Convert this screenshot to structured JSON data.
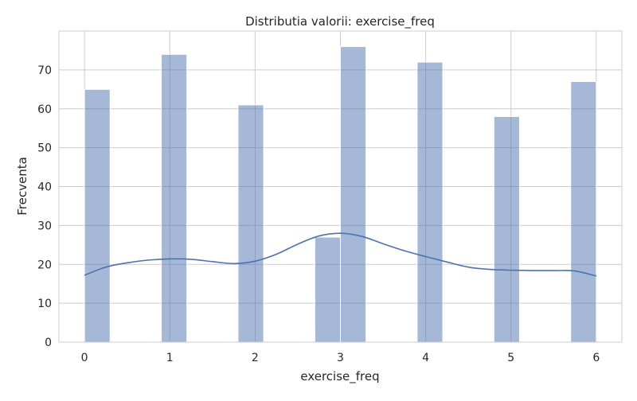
{
  "chart_data": {
    "type": "histogram",
    "title": "Distributia valorii: exercise_freq",
    "xlabel": "exercise_freq",
    "ylabel": "Frecventa",
    "xlim": [
      -0.3,
      6.3
    ],
    "ylim": [
      0,
      80
    ],
    "xticks": [
      "0",
      "1",
      "2",
      "3",
      "4",
      "5",
      "6"
    ],
    "yticks": [
      "0",
      "10",
      "20",
      "30",
      "40",
      "50",
      "60",
      "70"
    ],
    "grid": true,
    "bar_color": "#4c72b0",
    "kde_color": "#4c72b0",
    "bins": [
      {
        "x0": 0.0,
        "x1": 0.3,
        "count": 65
      },
      {
        "x0": 0.3,
        "x1": 0.6,
        "count": 0
      },
      {
        "x0": 0.6,
        "x1": 0.9,
        "count": 0
      },
      {
        "x0": 0.9,
        "x1": 1.2,
        "count": 74
      },
      {
        "x0": 1.2,
        "x1": 1.5,
        "count": 0
      },
      {
        "x0": 1.5,
        "x1": 1.8,
        "count": 0
      },
      {
        "x0": 1.8,
        "x1": 2.1,
        "count": 61
      },
      {
        "x0": 2.1,
        "x1": 2.4,
        "count": 0
      },
      {
        "x0": 2.4,
        "x1": 2.7,
        "count": 0
      },
      {
        "x0": 2.7,
        "x1": 3.0,
        "count": 27
      },
      {
        "x0": 3.0,
        "x1": 3.3,
        "count": 76
      },
      {
        "x0": 3.3,
        "x1": 3.6,
        "count": 0
      },
      {
        "x0": 3.6,
        "x1": 3.9,
        "count": 0
      },
      {
        "x0": 3.9,
        "x1": 4.2,
        "count": 72
      },
      {
        "x0": 4.2,
        "x1": 4.5,
        "count": 0
      },
      {
        "x0": 4.5,
        "x1": 4.8,
        "count": 0
      },
      {
        "x0": 4.8,
        "x1": 5.1,
        "count": 58
      },
      {
        "x0": 5.1,
        "x1": 5.4,
        "count": 0
      },
      {
        "x0": 5.4,
        "x1": 5.7,
        "count": 0
      },
      {
        "x0": 5.7,
        "x1": 6.0,
        "count": 67
      }
    ],
    "kde": {
      "x": [
        0.0,
        0.25,
        0.5,
        0.75,
        1.0,
        1.25,
        1.5,
        1.75,
        2.0,
        2.25,
        2.5,
        2.75,
        3.0,
        3.25,
        3.5,
        3.75,
        4.0,
        4.25,
        4.5,
        4.75,
        5.0,
        5.25,
        5.5,
        5.75,
        6.0
      ],
      "y": [
        17.2,
        19.3,
        20.4,
        21.1,
        21.4,
        21.3,
        20.7,
        20.2,
        20.8,
        22.6,
        25.2,
        27.3,
        28.0,
        27.2,
        25.3,
        23.5,
        22.0,
        20.6,
        19.3,
        18.7,
        18.5,
        18.4,
        18.4,
        18.3,
        17.0
      ]
    }
  }
}
